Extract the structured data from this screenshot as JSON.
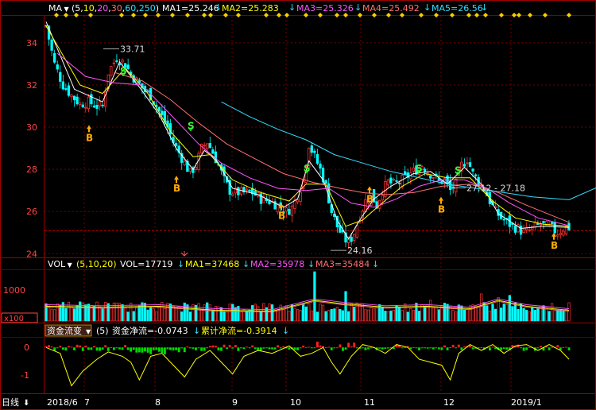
{
  "header": {
    "ma_label": "MA",
    "ma_params_open": "(",
    "ma_params": [
      "5",
      "10",
      "20",
      "30",
      "60",
      "250"
    ],
    "ma_params_close": ")",
    "ma1": "MA1=25.246",
    "ma2": "MA2=25.283",
    "ma3": "MA3=25.326",
    "ma4": "MA4=25.492",
    "ma5": "MA5=26.56"
  },
  "vol_header": {
    "label": "VOL",
    "params": "(5,10,20)",
    "vol": "VOL=17719",
    "ma1": "MA1=37468",
    "ma2": "MA2=35978",
    "ma3": "MA3=35484"
  },
  "flow_header": {
    "label": "资金流变",
    "param": "(5)",
    "net": "资金净流=-0.0743",
    "cum": "累计净流=-0.3914"
  },
  "footer": {
    "period": "日线",
    "dates": [
      "2018/6",
      "7",
      "8",
      "9",
      "10",
      "11",
      "12",
      "2019/1"
    ]
  },
  "colors": {
    "up": "#ff3333",
    "down": "#00ffff",
    "ma5": "#ffffff",
    "ma10": "#ffff00",
    "ma20": "#ff55ff",
    "ma30": "#ff7070",
    "ma60": "#33ddff",
    "flow_pos": "#ff2020",
    "flow_neg": "#00dd00",
    "flow_line": "#ffff00",
    "buy": "#ffaa00",
    "sell": "#33ff33"
  },
  "chart_data": {
    "type": "candlestick",
    "price_axis": {
      "ticks": [
        24,
        26,
        28,
        30,
        32,
        34
      ],
      "ylim": [
        23.9,
        35.2
      ]
    },
    "volume_axis": {
      "ticks": [
        1000
      ],
      "unit": "x100"
    },
    "flow_axis": {
      "ticks": [
        0,
        -1
      ],
      "ylim": [
        -1.5,
        0.25
      ]
    },
    "annotations": {
      "high": "33.71",
      "low": "24.16",
      "range": "27.12 - 27.18",
      "buy_markers": [
        "B",
        "B",
        "B",
        "B",
        "B",
        "B",
        "B"
      ],
      "sell_markers": [
        "S",
        "S",
        "S",
        "S",
        "S",
        "S"
      ]
    },
    "close_trend": [
      [
        0,
        34.8
      ],
      [
        3,
        33.0
      ],
      [
        6,
        32.0
      ],
      [
        9,
        31.5
      ],
      [
        12,
        31.1
      ],
      [
        15,
        31.2
      ],
      [
        18,
        31.0
      ],
      [
        20,
        31.0
      ],
      [
        22,
        32.6
      ],
      [
        25,
        33.3
      ],
      [
        28,
        33.0
      ],
      [
        30,
        32.5
      ],
      [
        32,
        32.2
      ],
      [
        35,
        31.7
      ],
      [
        37,
        31.5
      ],
      [
        39,
        31.0
      ],
      [
        41,
        30.5
      ],
      [
        43,
        30.0
      ],
      [
        45,
        29.3
      ],
      [
        47,
        28.8
      ],
      [
        49,
        28.3
      ],
      [
        51,
        27.8
      ],
      [
        53,
        28.2
      ],
      [
        55,
        29.0
      ],
      [
        57,
        29.3
      ],
      [
        59,
        28.8
      ],
      [
        61,
        28.2
      ],
      [
        63,
        27.5
      ],
      [
        65,
        27.0
      ],
      [
        67,
        26.9
      ],
      [
        70,
        26.9
      ],
      [
        73,
        26.9
      ],
      [
        76,
        26.6
      ],
      [
        79,
        26.5
      ],
      [
        82,
        26.3
      ],
      [
        85,
        26.0
      ],
      [
        87,
        26.2
      ],
      [
        89,
        26.8
      ],
      [
        91,
        27.5
      ],
      [
        93,
        29.2
      ],
      [
        95,
        28.6
      ],
      [
        97,
        28.0
      ],
      [
        99,
        27.2
      ],
      [
        101,
        26.0
      ],
      [
        103,
        25.3
      ],
      [
        105,
        24.8
      ],
      [
        107,
        24.5
      ],
      [
        109,
        25.0
      ],
      [
        111,
        25.8
      ],
      [
        113,
        26.5
      ],
      [
        115,
        26.8
      ],
      [
        117,
        26.3
      ],
      [
        119,
        27.0
      ],
      [
        121,
        27.4
      ],
      [
        123,
        27.3
      ],
      [
        125,
        27.4
      ],
      [
        127,
        27.6
      ],
      [
        129,
        27.8
      ],
      [
        131,
        28.0
      ],
      [
        133,
        28.2
      ],
      [
        135,
        27.9
      ],
      [
        137,
        27.7
      ],
      [
        139,
        27.4
      ],
      [
        141,
        27.5
      ],
      [
        143,
        27.0
      ],
      [
        145,
        27.3
      ],
      [
        147,
        28.2
      ],
      [
        149,
        28.5
      ],
      [
        151,
        27.8
      ],
      [
        153,
        27.4
      ],
      [
        155,
        27.1
      ],
      [
        157,
        26.5
      ],
      [
        159,
        26.0
      ],
      [
        161,
        25.7
      ],
      [
        163,
        25.5
      ],
      [
        165,
        25.3
      ],
      [
        167,
        25.2
      ],
      [
        169,
        25.0
      ],
      [
        171,
        25.1
      ],
      [
        173,
        25.3
      ],
      [
        175,
        25.4
      ],
      [
        177,
        25.3
      ],
      [
        179,
        25.2
      ],
      [
        181,
        25.0
      ],
      [
        183,
        25.2
      ],
      [
        185,
        25.25
      ]
    ],
    "moving_averages": [
      {
        "name": "MA1",
        "key": "ma5",
        "points": [
          [
            0,
            35.0
          ],
          [
            10,
            31.8
          ],
          [
            20,
            31.2
          ],
          [
            26,
            33.1
          ],
          [
            33,
            31.9
          ],
          [
            40,
            30.6
          ],
          [
            46,
            29.0
          ],
          [
            52,
            28.0
          ],
          [
            56,
            28.9
          ],
          [
            60,
            28.5
          ],
          [
            66,
            27.1
          ],
          [
            75,
            26.8
          ],
          [
            84,
            26.2
          ],
          [
            89,
            26.6
          ],
          [
            93,
            28.4
          ],
          [
            98,
            27.5
          ],
          [
            103,
            25.6
          ],
          [
            107,
            24.7
          ],
          [
            111,
            25.6
          ],
          [
            116,
            26.6
          ],
          [
            122,
            27.2
          ],
          [
            130,
            27.8
          ],
          [
            136,
            27.9
          ],
          [
            142,
            27.3
          ],
          [
            148,
            28.1
          ],
          [
            154,
            27.3
          ],
          [
            160,
            25.9
          ],
          [
            168,
            25.2
          ],
          [
            176,
            25.3
          ],
          [
            185,
            25.25
          ]
        ]
      },
      {
        "name": "MA2",
        "key": "ma10",
        "points": [
          [
            0,
            34.8
          ],
          [
            12,
            32.0
          ],
          [
            20,
            31.6
          ],
          [
            28,
            32.8
          ],
          [
            36,
            31.6
          ],
          [
            44,
            29.8
          ],
          [
            52,
            28.6
          ],
          [
            58,
            28.7
          ],
          [
            66,
            27.5
          ],
          [
            76,
            26.9
          ],
          [
            86,
            26.5
          ],
          [
            92,
            27.3
          ],
          [
            99,
            27.3
          ],
          [
            106,
            25.3
          ],
          [
            112,
            25.6
          ],
          [
            118,
            26.3
          ],
          [
            126,
            27.2
          ],
          [
            134,
            27.8
          ],
          [
            142,
            27.6
          ],
          [
            150,
            27.6
          ],
          [
            158,
            26.5
          ],
          [
            166,
            25.7
          ],
          [
            176,
            25.4
          ],
          [
            185,
            25.3
          ]
        ]
      },
      {
        "name": "MA3",
        "key": "ma20",
        "points": [
          [
            4,
            33.5
          ],
          [
            14,
            32.4
          ],
          [
            24,
            32.1
          ],
          [
            34,
            32.0
          ],
          [
            44,
            30.6
          ],
          [
            54,
            29.2
          ],
          [
            62,
            28.3
          ],
          [
            72,
            27.6
          ],
          [
            82,
            27.1
          ],
          [
            92,
            27.0
          ],
          [
            100,
            27.1
          ],
          [
            108,
            26.4
          ],
          [
            116,
            26.2
          ],
          [
            124,
            26.6
          ],
          [
            132,
            27.2
          ],
          [
            140,
            27.5
          ],
          [
            148,
            27.5
          ],
          [
            156,
            27.1
          ],
          [
            164,
            26.4
          ],
          [
            174,
            25.7
          ],
          [
            185,
            25.33
          ]
        ]
      },
      {
        "name": "MA4",
        "key": "ma30",
        "points": [
          [
            24,
            32.6
          ],
          [
            34,
            32.2
          ],
          [
            44,
            31.3
          ],
          [
            54,
            30.2
          ],
          [
            64,
            29.2
          ],
          [
            74,
            28.5
          ],
          [
            84,
            27.8
          ],
          [
            94,
            27.4
          ],
          [
            104,
            27.1
          ],
          [
            112,
            26.9
          ],
          [
            120,
            26.8
          ],
          [
            130,
            26.9
          ],
          [
            140,
            27.2
          ],
          [
            150,
            27.3
          ],
          [
            160,
            26.9
          ],
          [
            170,
            26.3
          ],
          [
            185,
            25.49
          ]
        ]
      },
      {
        "name": "MA5",
        "key": "ma60",
        "points": [
          [
            62,
            31.2
          ],
          [
            72,
            30.5
          ],
          [
            82,
            29.9
          ],
          [
            92,
            29.4
          ],
          [
            102,
            28.7
          ],
          [
            112,
            28.3
          ],
          [
            122,
            27.9
          ],
          [
            132,
            27.6
          ],
          [
            142,
            27.3
          ],
          [
            152,
            27.1
          ],
          [
            162,
            26.9
          ],
          [
            172,
            26.7
          ],
          [
            185,
            26.56
          ]
        ]
      }
    ],
    "volume": {
      "label": "VOL",
      "values_x100": [],
      "ma_lines": [
        "MA1",
        "MA2",
        "MA3"
      ]
    },
    "fund_flow": {
      "series": [
        "资金净流",
        "累计净流"
      ]
    }
  }
}
